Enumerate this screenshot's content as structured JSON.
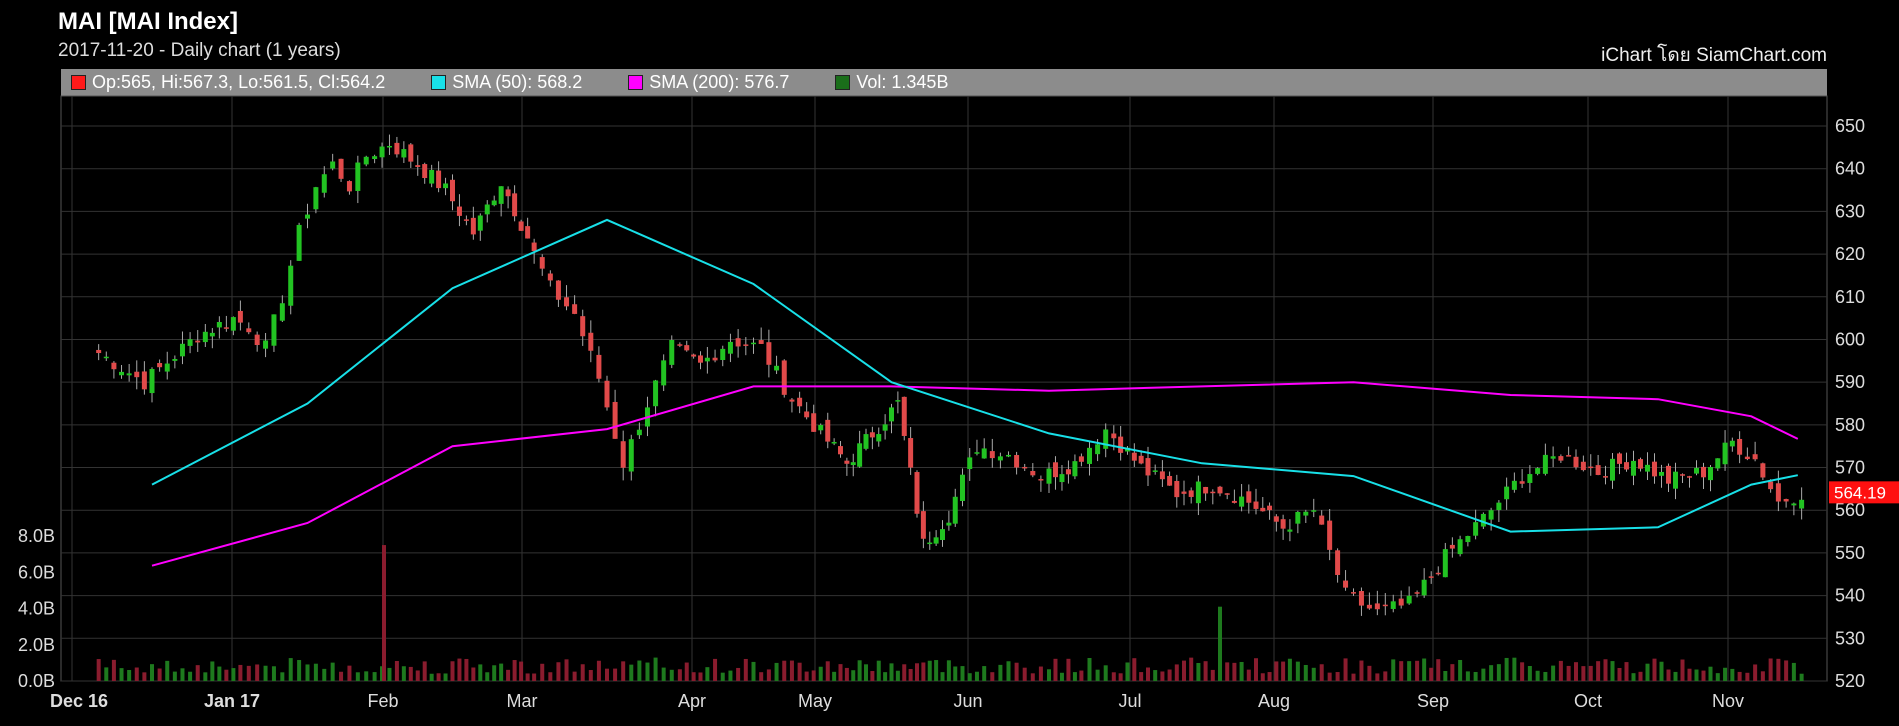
{
  "header": {
    "title": "MAI [MAI Index]",
    "subtitle": "2017-11-20 - Daily chart (1 years)",
    "credit": "iChart โดย SiamChart.com"
  },
  "legend": {
    "ohlc": {
      "label": "Op:565, Hi:567.3, Lo:561.5, Cl:564.2",
      "color": "#ff1a1a"
    },
    "sma50": {
      "label": "SMA (50): 568.2",
      "color": "#18e0e8"
    },
    "sma200": {
      "label": "SMA (200): 576.7",
      "color": "#ff00ff"
    },
    "vol": {
      "label": "Vol: 1.345B",
      "color": "#1a6e1a"
    }
  },
  "chart_data": {
    "type": "candlestick",
    "price_axis": {
      "min": 520,
      "max": 650,
      "ticks": [
        520,
        530,
        540,
        550,
        560,
        570,
        580,
        590,
        600,
        610,
        620,
        630,
        640,
        650
      ],
      "side": "right"
    },
    "volume_axis": {
      "min": 0,
      "max": 8,
      "unit": "B",
      "ticks": [
        "0.0B",
        "2.0B",
        "4.0B",
        "6.0B",
        "8.0B"
      ],
      "side": "left"
    },
    "x_labels": [
      "Dec 16",
      "Jan 17",
      "Feb",
      "Mar",
      "Apr",
      "May",
      "Jun",
      "Jul",
      "Aug",
      "Sep",
      "Oct",
      "Nov"
    ],
    "last_price_label": "564.19",
    "close_path": [
      [
        "Dec 16",
        598
      ],
      [
        "Dec 16",
        590
      ],
      [
        "Dec 16",
        601
      ],
      [
        "Jan 17",
        605
      ],
      [
        "Jan 17",
        603
      ],
      [
        "Jan 17",
        598
      ],
      [
        "Jan 17",
        610
      ],
      [
        "Jan 17",
        625
      ],
      [
        "Jan 17",
        636
      ],
      [
        "Jan 17",
        641
      ],
      [
        "Jan 17",
        636
      ],
      [
        "Jan 17",
        643
      ],
      [
        "Feb",
        646
      ],
      [
        "Feb",
        641
      ],
      [
        "Feb",
        635
      ],
      [
        "Feb",
        625
      ],
      [
        "Feb",
        637
      ],
      [
        "Mar",
        624
      ],
      [
        "Mar",
        612
      ],
      [
        "Mar",
        606
      ],
      [
        "Mar",
        591
      ],
      [
        "Mar",
        571
      ],
      [
        "Mar",
        585
      ],
      [
        "Mar",
        598
      ],
      [
        "Apr",
        594
      ],
      [
        "Apr",
        600
      ],
      [
        "Apr",
        598
      ],
      [
        "Apr",
        586
      ],
      [
        "May",
        578
      ],
      [
        "May",
        571
      ],
      [
        "May",
        578
      ],
      [
        "May",
        585
      ],
      [
        "May",
        552
      ],
      [
        "May",
        559
      ],
      [
        "Jun",
        575
      ],
      [
        "Jun",
        573
      ],
      [
        "Jun",
        568
      ],
      [
        "Jun",
        571
      ],
      [
        "Jun",
        579
      ],
      [
        "Jul",
        570
      ],
      [
        "Jul",
        564
      ],
      [
        "Jul",
        566
      ],
      [
        "Jul",
        562
      ],
      [
        "Aug",
        556
      ],
      [
        "Aug",
        560
      ],
      [
        "Aug",
        540
      ],
      [
        "Aug",
        536
      ],
      [
        "Aug",
        538
      ],
      [
        "Sep",
        549
      ],
      [
        "Sep",
        558
      ],
      [
        "Sep",
        568
      ],
      [
        "Sep",
        573
      ],
      [
        "Oct",
        569
      ],
      [
        "Oct",
        572
      ],
      [
        "Oct",
        567
      ],
      [
        "Oct",
        569
      ],
      [
        "Nov",
        576
      ],
      [
        "Nov",
        572
      ],
      [
        "Nov",
        562
      ],
      [
        "Nov",
        564.2
      ]
    ],
    "sma50": [
      [
        "Dec 16",
        566
      ],
      [
        "Jan 17",
        585
      ],
      [
        "Feb",
        612
      ],
      [
        "Mar",
        628
      ],
      [
        "Apr",
        613
      ],
      [
        "May",
        590
      ],
      [
        "Jun",
        578
      ],
      [
        "Jul",
        571
      ],
      [
        "Aug",
        568
      ],
      [
        "Sep",
        555
      ],
      [
        "Oct",
        556
      ],
      [
        "Nov",
        566
      ],
      [
        "Nov",
        568.2
      ]
    ],
    "sma200": [
      [
        "Dec 16",
        547
      ],
      [
        "Jan 17",
        557
      ],
      [
        "Feb",
        575
      ],
      [
        "Mar",
        579
      ],
      [
        "Apr",
        589
      ],
      [
        "May",
        589
      ],
      [
        "Jun",
        588
      ],
      [
        "Jul",
        589
      ],
      [
        "Aug",
        590
      ],
      [
        "Sep",
        587
      ],
      [
        "Oct",
        586
      ],
      [
        "Nov",
        582
      ],
      [
        "Nov",
        576.7
      ]
    ],
    "volume_peaks": [
      {
        "label": "Feb",
        "value": 7.5
      },
      {
        "label": "Aug",
        "value": 4.1
      }
    ],
    "colors": {
      "up": "#22c322",
      "down": "#e14a4a",
      "vol_up": "#1e7a1e",
      "vol_down": "#8a1c2e",
      "grid": "#333333",
      "sma50": "#18e0e8",
      "sma200": "#ff00ff"
    }
  }
}
